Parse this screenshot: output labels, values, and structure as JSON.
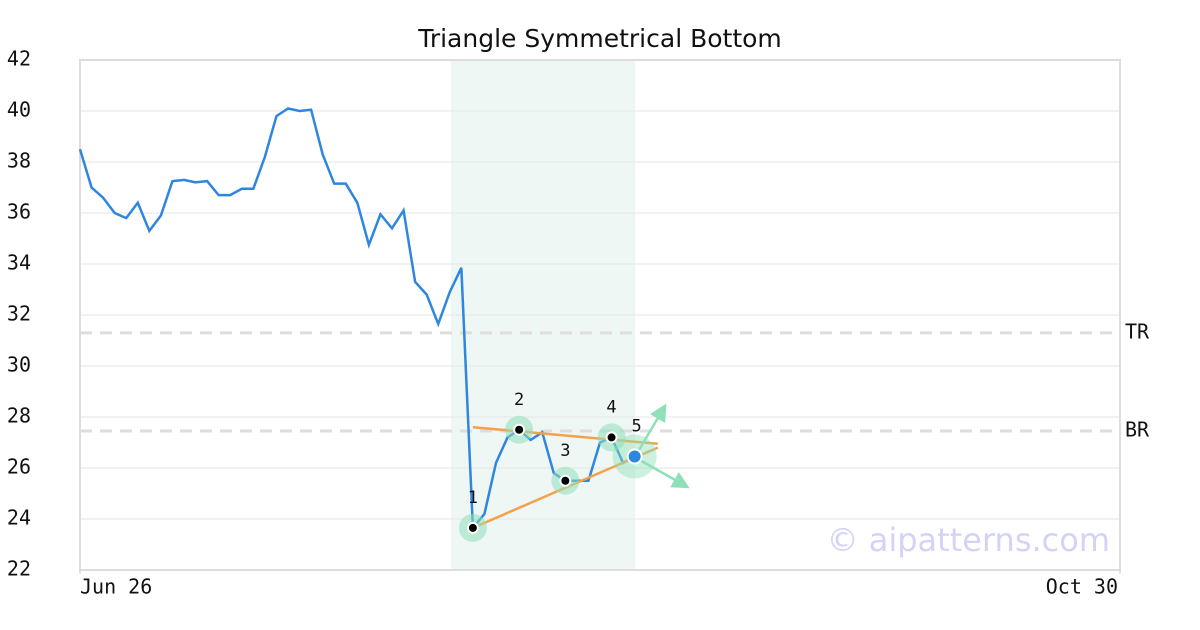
{
  "chart_data": {
    "type": "line",
    "title": "Triangle Symmetrical Bottom",
    "x": [
      0,
      1,
      2,
      3,
      4,
      5,
      6,
      7,
      8,
      9,
      10,
      11,
      12,
      13,
      14,
      15,
      16,
      17,
      18,
      19,
      20,
      21,
      22,
      23,
      24,
      25,
      26,
      27,
      28,
      29,
      30,
      31,
      32,
      33,
      34,
      35,
      36,
      37,
      38,
      39,
      40,
      41,
      42,
      43,
      44,
      45,
      46,
      47,
      48
    ],
    "values": [
      38.5,
      37.0,
      36.6,
      36.0,
      35.8,
      36.4,
      35.3,
      35.9,
      37.25,
      37.3,
      37.2,
      37.25,
      36.7,
      36.7,
      36.95,
      36.95,
      38.2,
      39.8,
      40.1,
      40.0,
      40.05,
      38.3,
      37.15,
      37.15,
      36.4,
      34.75,
      35.95,
      35.4,
      36.1,
      33.3,
      32.8,
      31.65,
      32.9,
      33.85,
      23.65,
      24.2,
      26.2,
      27.2,
      27.5,
      27.1,
      27.4,
      25.8,
      25.5,
      25.5,
      25.5,
      27.0,
      27.2,
      26.2,
      26.45
    ],
    "color": "#2e86de",
    "xlim": [
      0,
      90
    ],
    "xticks": [
      {
        "value": 0,
        "label": "Jun 26"
      },
      {
        "value": 90,
        "label": "Oct 30"
      }
    ],
    "ylim": [
      22,
      42
    ],
    "yticks": [
      22,
      24,
      26,
      28,
      30,
      32,
      34,
      36,
      38,
      40,
      42
    ],
    "grid": true,
    "highlight_x": [
      32.1,
      48.05
    ],
    "reference_lines": [
      {
        "label": "TR",
        "value": 31.3
      },
      {
        "label": "BR",
        "value": 27.45
      }
    ],
    "pattern": {
      "points": [
        {
          "label": "1",
          "x": 34,
          "y": 23.65
        },
        {
          "label": "2",
          "x": 38,
          "y": 27.5
        },
        {
          "label": "3",
          "x": 42,
          "y": 25.5
        },
        {
          "label": "4",
          "x": 46,
          "y": 27.2
        },
        {
          "label": "5",
          "x": 48,
          "y": 26.45
        }
      ],
      "trendlines": [
        {
          "x": [
            34,
            50
          ],
          "y": [
            27.6,
            26.95
          ]
        },
        {
          "x": [
            34,
            50
          ],
          "y": [
            23.65,
            26.8
          ]
        }
      ],
      "color": "#f5a04a"
    },
    "watermark": "© aipatterns.com"
  }
}
